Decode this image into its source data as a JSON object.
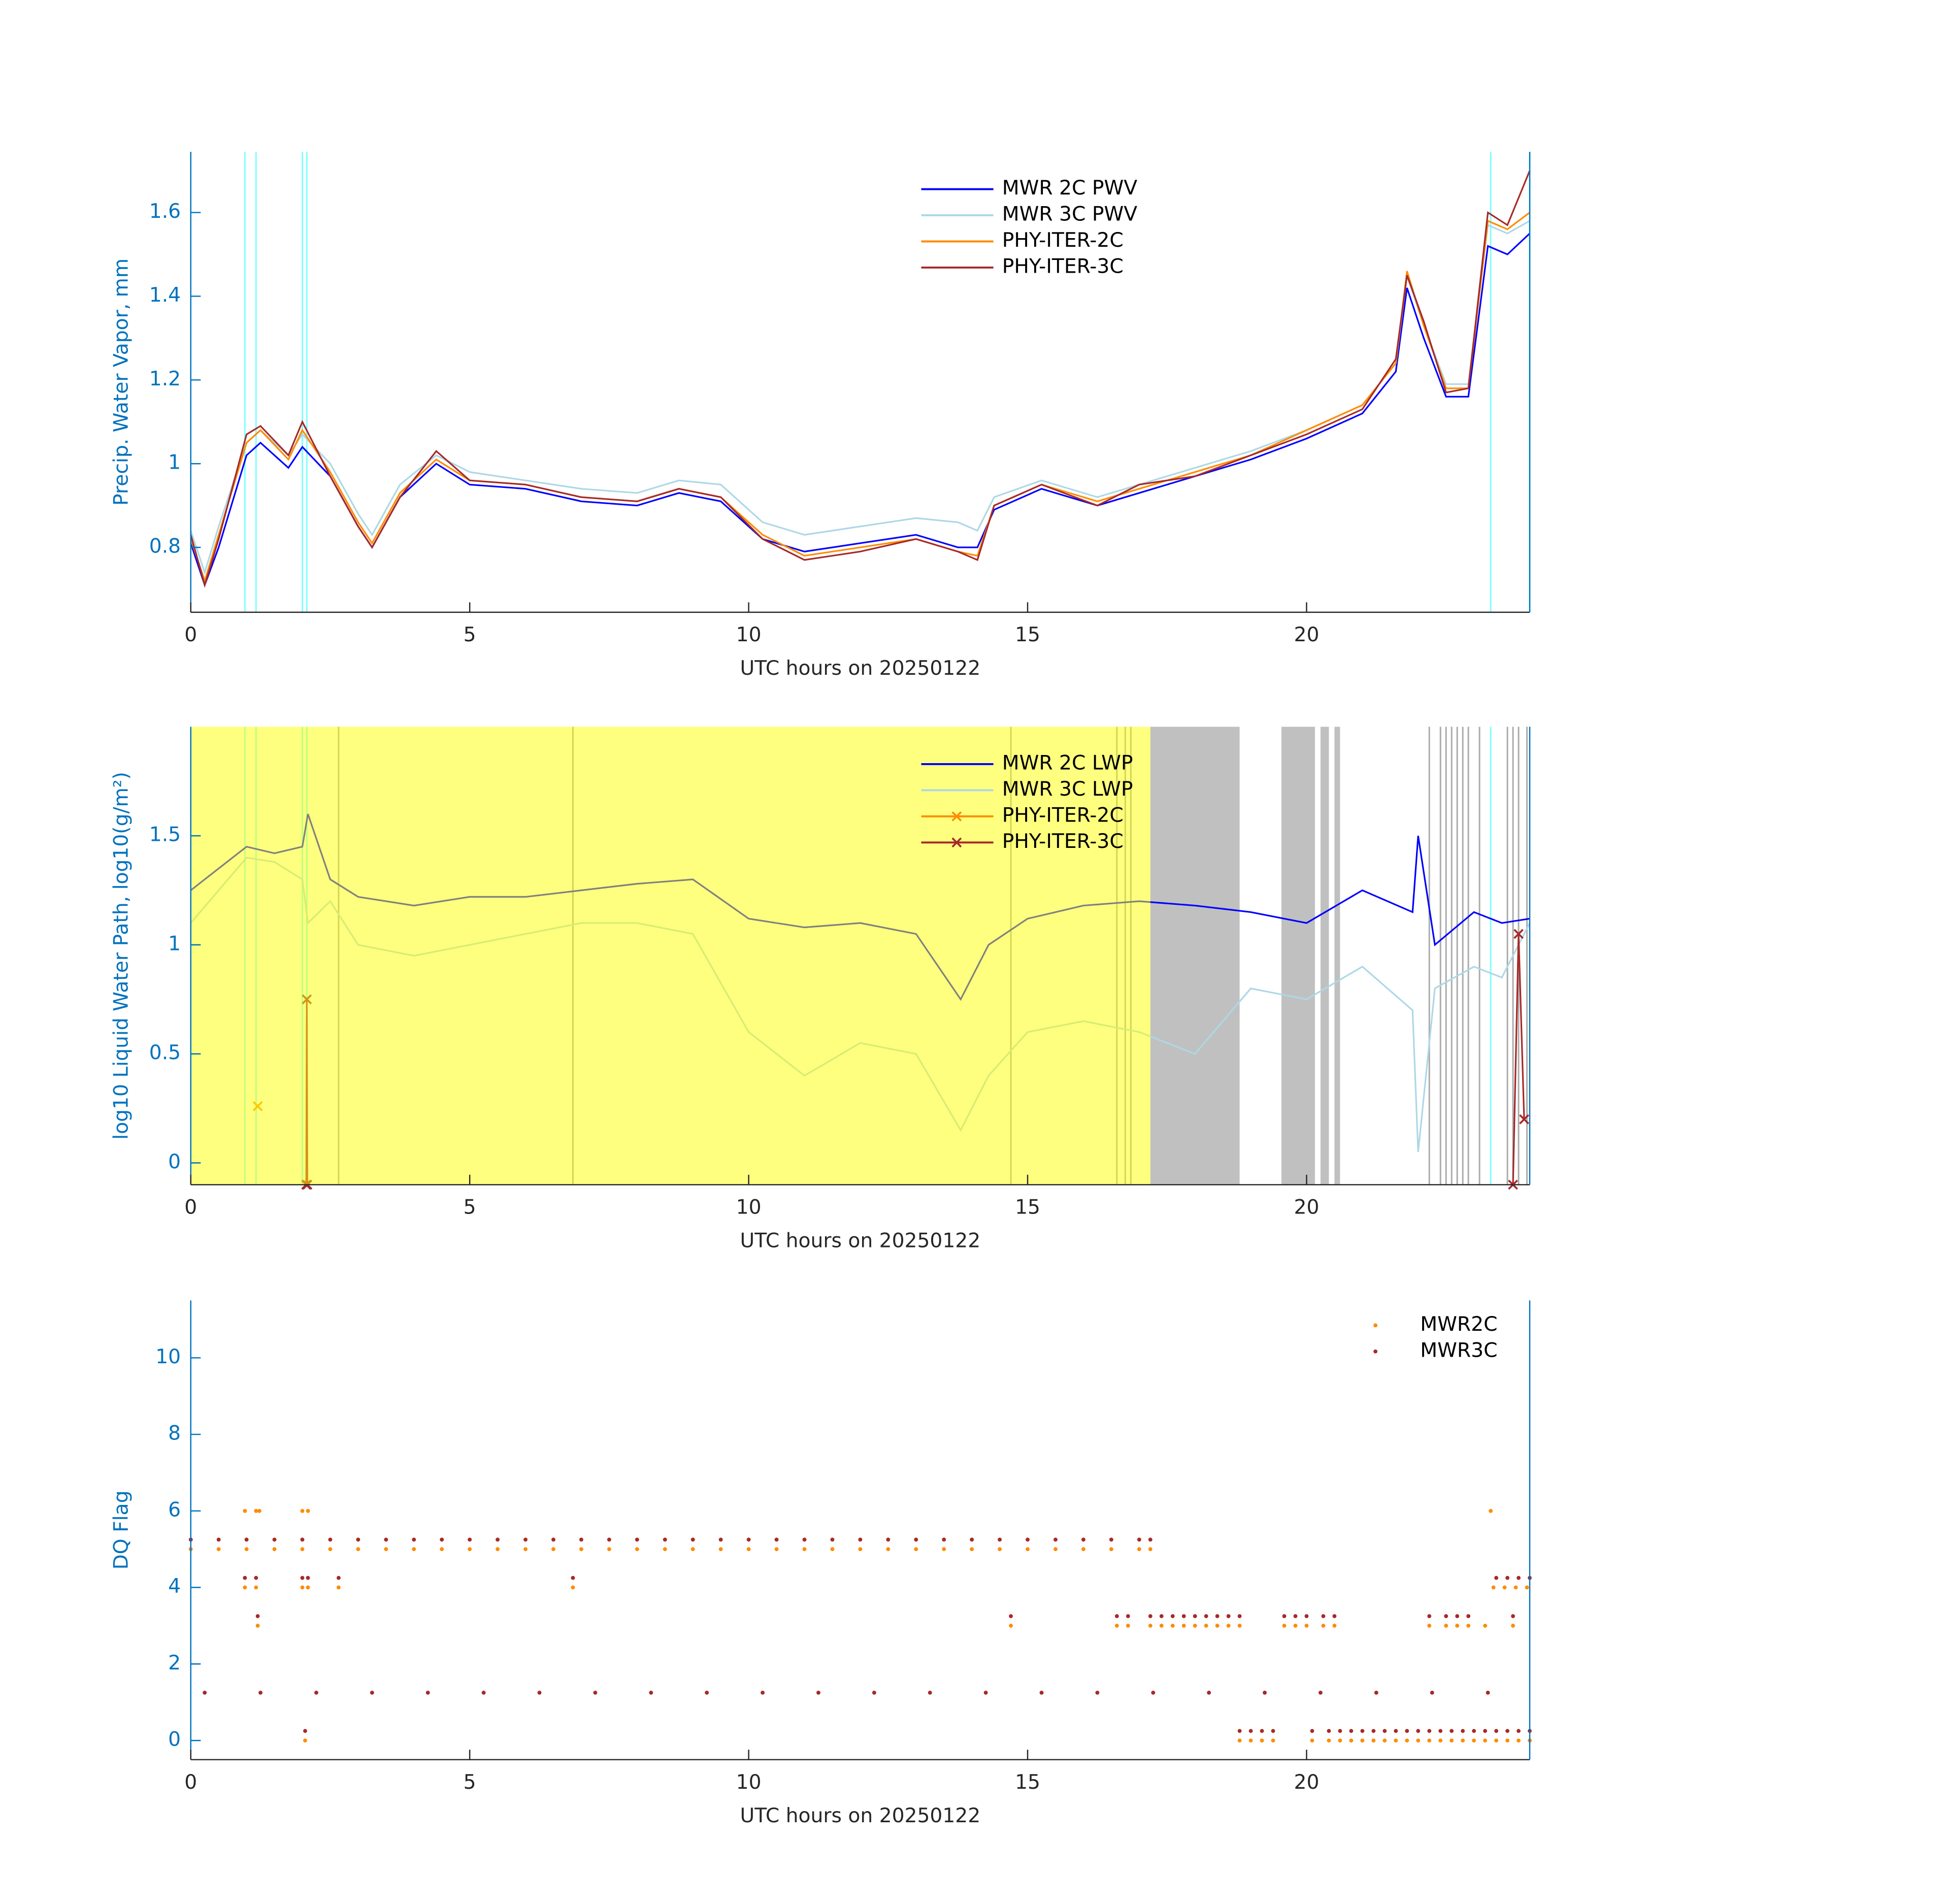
{
  "chart_data": [
    {
      "type": "line",
      "ylabel": "Precip. Water Vapor, mm",
      "xlabel": "UTC hours on 20250122",
      "xlim": [
        0,
        24
      ],
      "xticks": [
        0,
        5,
        10,
        15,
        20
      ],
      "ylim": [
        0.645,
        1.745
      ],
      "yticks": [
        0.8,
        1,
        1.2,
        1.4,
        1.6
      ],
      "vlines": [
        {
          "color": "#80ffff",
          "x": [
            0.97,
            1.17,
            2.0,
            2.08,
            23.3,
            24
          ]
        }
      ],
      "x": [
        0,
        0.25,
        0.5,
        1,
        1.25,
        1.75,
        2,
        2.5,
        3,
        3.25,
        3.75,
        4.4,
        5,
        6,
        7,
        8,
        8.75,
        9.5,
        10.25,
        11,
        12,
        13,
        13.75,
        14.1,
        14.4,
        15.25,
        16.25,
        17,
        18,
        19,
        20,
        21,
        21.6,
        21.8,
        22.1,
        22.5,
        22.9,
        23.25,
        23.6,
        24
      ],
      "series": [
        {
          "name": "MWR 2C PWV",
          "color": "#0000ff",
          "values": [
            0.81,
            0.71,
            0.8,
            1.02,
            1.05,
            0.99,
            1.04,
            0.97,
            0.85,
            0.8,
            0.92,
            1.0,
            0.95,
            0.94,
            0.91,
            0.9,
            0.93,
            0.91,
            0.82,
            0.79,
            0.81,
            0.83,
            0.8,
            0.8,
            0.89,
            0.94,
            0.9,
            0.93,
            0.97,
            1.01,
            1.06,
            1.12,
            1.22,
            1.42,
            1.3,
            1.16,
            1.16,
            1.52,
            1.5,
            1.55
          ]
        },
        {
          "name": "MWR 3C PWV",
          "color": "#add8e6",
          "values": [
            0.84,
            0.74,
            0.85,
            1.05,
            1.08,
            1.02,
            1.07,
            1.0,
            0.88,
            0.83,
            0.95,
            1.02,
            0.98,
            0.96,
            0.94,
            0.93,
            0.96,
            0.95,
            0.86,
            0.83,
            0.85,
            0.87,
            0.86,
            0.84,
            0.92,
            0.96,
            0.92,
            0.95,
            0.99,
            1.03,
            1.08,
            1.14,
            1.24,
            1.45,
            1.33,
            1.19,
            1.19,
            1.57,
            1.55,
            1.58
          ]
        },
        {
          "name": "PHY-ITER-2C",
          "color": "#ff8c00",
          "values": [
            0.82,
            0.72,
            0.83,
            1.05,
            1.08,
            1.01,
            1.08,
            0.98,
            0.86,
            0.81,
            0.93,
            1.01,
            0.96,
            0.95,
            0.92,
            0.91,
            0.94,
            0.92,
            0.83,
            0.78,
            0.8,
            0.82,
            0.79,
            0.78,
            0.9,
            0.95,
            0.91,
            0.94,
            0.98,
            1.02,
            1.08,
            1.14,
            1.24,
            1.46,
            1.33,
            1.18,
            1.18,
            1.58,
            1.56,
            1.6
          ]
        },
        {
          "name": "PHY-ITER-3C",
          "color": "#a52a2a",
          "values": [
            0.83,
            0.71,
            0.82,
            1.07,
            1.09,
            1.02,
            1.1,
            0.97,
            0.85,
            0.8,
            0.92,
            1.03,
            0.96,
            0.95,
            0.92,
            0.91,
            0.94,
            0.92,
            0.82,
            0.77,
            0.79,
            0.82,
            0.79,
            0.77,
            0.9,
            0.95,
            0.9,
            0.95,
            0.97,
            1.02,
            1.07,
            1.13,
            1.25,
            1.45,
            1.34,
            1.17,
            1.18,
            1.6,
            1.57,
            1.7
          ]
        }
      ]
    },
    {
      "type": "line",
      "ylabel": "log10 Liquid Water Path, log10(g/m²)",
      "xlabel": "UTC hours on 20250122",
      "xlim": [
        0,
        24
      ],
      "xticks": [
        0,
        5,
        10,
        15,
        20
      ],
      "ylim": [
        -0.1,
        2.0
      ],
      "yticks": [
        0,
        0.5,
        1,
        1.5
      ],
      "shaded_regions": [
        {
          "start": 0,
          "end": 17.2,
          "color": "#ffff00",
          "alpha": 0.5
        },
        {
          "start": 17.2,
          "end": 18.8,
          "color": "#c0c0c0",
          "alpha": 1
        },
        {
          "start": 19.55,
          "end": 20.15,
          "color": "#c0c0c0",
          "alpha": 1
        },
        {
          "start": 20.25,
          "end": 20.4,
          "color": "#c0c0c0",
          "alpha": 1
        },
        {
          "start": 20.5,
          "end": 20.6,
          "color": "#c0c0c0",
          "alpha": 1
        }
      ],
      "vlines": [
        {
          "color": "#aaaaaa",
          "x": [
            2.65,
            6.85,
            14.7,
            16.6,
            16.75,
            16.85,
            22.2,
            22.4,
            22.5,
            22.6,
            22.7,
            22.8,
            22.9,
            23.1,
            23.6,
            23.7,
            23.8,
            23.95
          ]
        },
        {
          "color": "#80ffff",
          "x": [
            0.97,
            1.17,
            2.0,
            2.08,
            23.3
          ]
        }
      ],
      "x": [
        0,
        0.5,
        1,
        1.5,
        2,
        2.1,
        2.5,
        3,
        4,
        5,
        6,
        7,
        8,
        9,
        10,
        11,
        12,
        13,
        13.8,
        14.3,
        15,
        16,
        17,
        18,
        19,
        20,
        21,
        21.9,
        22,
        22.3,
        23,
        23.5,
        24
      ],
      "series": [
        {
          "name": "MWR 2C LWP",
          "color": "#0000ff",
          "values": [
            1.25,
            1.35,
            1.45,
            1.42,
            1.45,
            1.6,
            1.3,
            1.22,
            1.18,
            1.22,
            1.22,
            1.25,
            1.28,
            1.3,
            1.12,
            1.08,
            1.1,
            1.05,
            0.75,
            1.0,
            1.12,
            1.18,
            1.2,
            1.18,
            1.15,
            1.1,
            1.25,
            1.15,
            1.5,
            1.0,
            1.15,
            1.1,
            1.12
          ]
        },
        {
          "name": "MWR 3C LWP",
          "color": "#add8e6",
          "values": [
            1.1,
            1.25,
            1.4,
            1.38,
            1.3,
            1.1,
            1.2,
            1.0,
            0.95,
            1.0,
            1.05,
            1.1,
            1.1,
            1.05,
            0.6,
            0.4,
            0.55,
            0.5,
            0.15,
            0.4,
            0.6,
            0.65,
            0.6,
            0.5,
            0.8,
            0.75,
            0.9,
            0.7,
            0.05,
            0.8,
            0.9,
            0.85,
            1.1
          ]
        },
        {
          "name": "PHY-ITER-2C",
          "color": "#ff8c00",
          "marker": "x",
          "x": [
            1.2
          ],
          "values": [
            0.26
          ]
        },
        {
          "name": "PHY-ITER-3C",
          "color": "#a52a2a",
          "marker": "x",
          "x": [
            2.07,
            2.08,
            2.09,
            23.6,
            23.7,
            23.8,
            23.9
          ],
          "values": [
            -0.1,
            0.75,
            -0.1,
            null,
            -0.1,
            1.05,
            0.2
          ]
        }
      ]
    },
    {
      "type": "scatter",
      "ylabel": "DQ Flag",
      "xlabel": "UTC hours on 20250122",
      "xlim": [
        0,
        24
      ],
      "xticks": [
        0,
        5,
        10,
        15,
        20
      ],
      "ylim": [
        -0.5,
        11.5
      ],
      "yticks": [
        0,
        2,
        4,
        6,
        8,
        10
      ],
      "series": [
        {
          "name": "MWR2C",
          "color": "#ff8c00",
          "x": [
            0,
            0.5,
            1,
            1.5,
            2,
            2.5,
            3,
            3.5,
            4,
            4.5,
            5,
            5.5,
            6,
            6.5,
            7,
            7.5,
            8,
            8.5,
            9,
            9.5,
            10,
            10.5,
            11,
            11.5,
            12,
            12.5,
            13,
            13.5,
            14,
            14.5,
            15,
            15.5,
            16,
            16.5,
            17,
            17.2,
            0.97,
            1.17,
            1.23,
            2.0,
            2.1,
            23.3,
            0.97,
            1.17,
            2.0,
            2.1,
            2.65,
            6.85,
            23.35,
            23.55,
            23.75,
            23.95,
            1.2,
            14.7,
            16.6,
            16.8,
            17.2,
            17.4,
            17.6,
            17.8,
            18,
            18.2,
            18.4,
            18.6,
            18.8,
            19.6,
            19.8,
            20,
            20.3,
            20.5,
            22.2,
            22.5,
            22.7,
            22.9,
            23.2,
            23.7,
            2.05,
            18.8,
            19,
            19.2,
            19.4,
            20.1,
            20.4,
            20.6,
            20.8,
            21,
            21.2,
            21.4,
            21.6,
            21.8,
            22,
            22.2,
            22.4,
            22.6,
            22.8,
            23,
            23.2,
            23.4,
            23.6,
            23.8,
            24
          ],
          "values": [
            5,
            5,
            5,
            5,
            5,
            5,
            5,
            5,
            5,
            5,
            5,
            5,
            5,
            5,
            5,
            5,
            5,
            5,
            5,
            5,
            5,
            5,
            5,
            5,
            5,
            5,
            5,
            5,
            5,
            5,
            5,
            5,
            5,
            5,
            5,
            5,
            6,
            6,
            6,
            6,
            6,
            6,
            4,
            4,
            4,
            4,
            4,
            4,
            4,
            4,
            4,
            4,
            3,
            3,
            3,
            3,
            3,
            3,
            3,
            3,
            3,
            3,
            3,
            3,
            3,
            3,
            3,
            3,
            3,
            3,
            3,
            3,
            3,
            3,
            3,
            3,
            0,
            0,
            0,
            0,
            0,
            0,
            0,
            0,
            0,
            0,
            0,
            0,
            0,
            0,
            0,
            0,
            0,
            0,
            0,
            0,
            0,
            0,
            0,
            0,
            0
          ]
        },
        {
          "name": "MWR3C",
          "color": "#a52a2a",
          "x": [
            0,
            0.5,
            1,
            1.5,
            2,
            2.5,
            3,
            3.5,
            4,
            4.5,
            5,
            5.5,
            6,
            6.5,
            7,
            7.5,
            8,
            8.5,
            9,
            9.5,
            10,
            10.5,
            11,
            11.5,
            12,
            12.5,
            13,
            13.5,
            14,
            14.5,
            15,
            15.5,
            16,
            16.5,
            17,
            17.2,
            0.97,
            1.17,
            2.0,
            2.1,
            2.65,
            6.85,
            23.4,
            23.6,
            23.8,
            24,
            1.2,
            14.7,
            16.6,
            16.8,
            17.2,
            17.4,
            17.6,
            17.8,
            18,
            18.2,
            18.4,
            18.6,
            18.8,
            19.6,
            19.8,
            20,
            20.3,
            20.5,
            22.2,
            22.5,
            22.7,
            22.9,
            23.7,
            0.25,
            1.25,
            2.25,
            3.25,
            4.25,
            5.25,
            6.25,
            7.25,
            8.25,
            9.25,
            10.25,
            11.25,
            12.25,
            13.25,
            14.25,
            15.25,
            16.25,
            17.25,
            18.25,
            19.25,
            20.25,
            21.25,
            22.25,
            23.25,
            2.05,
            18.8,
            19,
            19.2,
            19.4,
            20.1,
            20.4,
            20.6,
            20.8,
            21,
            21.2,
            21.4,
            21.6,
            21.8,
            22,
            22.2,
            22.4,
            22.6,
            22.8,
            23,
            23.2,
            23.4,
            23.6,
            23.8,
            24
          ],
          "values": [
            5.25,
            5.25,
            5.25,
            5.25,
            5.25,
            5.25,
            5.25,
            5.25,
            5.25,
            5.25,
            5.25,
            5.25,
            5.25,
            5.25,
            5.25,
            5.25,
            5.25,
            5.25,
            5.25,
            5.25,
            5.25,
            5.25,
            5.25,
            5.25,
            5.25,
            5.25,
            5.25,
            5.25,
            5.25,
            5.25,
            5.25,
            5.25,
            5.25,
            5.25,
            5.25,
            5.25,
            4.25,
            4.25,
            4.25,
            4.25,
            4.25,
            4.25,
            4.25,
            4.25,
            4.25,
            4.25,
            3.25,
            3.25,
            3.25,
            3.25,
            3.25,
            3.25,
            3.25,
            3.25,
            3.25,
            3.25,
            3.25,
            3.25,
            3.25,
            3.25,
            3.25,
            3.25,
            3.25,
            3.25,
            3.25,
            3.25,
            3.25,
            3.25,
            3.25,
            1.25,
            1.25,
            1.25,
            1.25,
            1.25,
            1.25,
            1.25,
            1.25,
            1.25,
            1.25,
            1.25,
            1.25,
            1.25,
            1.25,
            1.25,
            1.25,
            1.25,
            1.25,
            1.25,
            1.25,
            1.25,
            1.25,
            1.25,
            1.25,
            0.25,
            0.25,
            0.25,
            0.25,
            0.25,
            0.25,
            0.25,
            0.25,
            0.25,
            0.25,
            0.25,
            0.25,
            0.25,
            0.25,
            0.25,
            0.25,
            0.25,
            0.25,
            0.25,
            0.25,
            0.25,
            0.25,
            0.25,
            0.25,
            0.25
          ]
        }
      ]
    }
  ]
}
